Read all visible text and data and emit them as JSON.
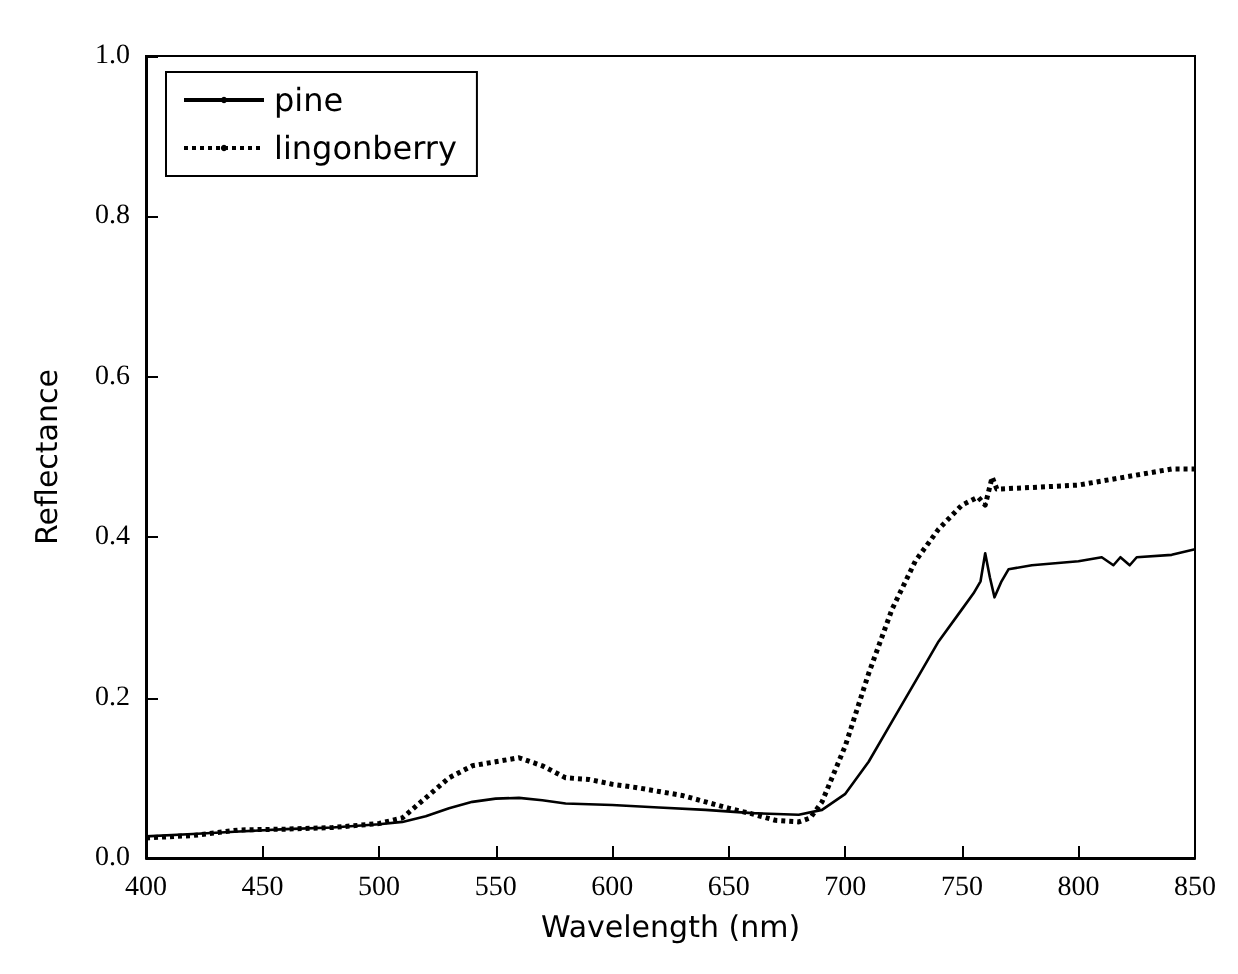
{
  "chart_data": {
    "type": "line",
    "xlabel": "Wavelength (nm)",
    "ylabel": "Reflectance",
    "xlim": [
      400,
      850
    ],
    "ylim": [
      0,
      1
    ],
    "xticks": [
      400,
      450,
      500,
      550,
      600,
      650,
      700,
      750,
      800,
      850
    ],
    "yticks": [
      {
        "value": 0,
        "label": "0.0"
      },
      {
        "value": 0.2,
        "label": "0.2"
      },
      {
        "value": 0.4,
        "label": "0.4"
      },
      {
        "value": 0.6,
        "label": "0.6"
      },
      {
        "value": 0.8,
        "label": "0.8"
      },
      {
        "value": 1,
        "label": "1.0"
      }
    ],
    "grid": false,
    "legend": "top left",
    "marker": "none",
    "series": [
      {
        "name": "pine",
        "color": "#000000",
        "line_style": "solid",
        "x": [
          400,
          420,
          440,
          460,
          480,
          500,
          510,
          520,
          530,
          540,
          550,
          560,
          570,
          580,
          600,
          620,
          640,
          660,
          680,
          690,
          700,
          710,
          720,
          730,
          740,
          750,
          755,
          758,
          760,
          762,
          764,
          767,
          770,
          780,
          800,
          810,
          815,
          818,
          822,
          825,
          840,
          850
        ],
        "values": [
          0.027,
          0.03,
          0.033,
          0.036,
          0.038,
          0.042,
          0.045,
          0.052,
          0.062,
          0.07,
          0.074,
          0.075,
          0.072,
          0.068,
          0.066,
          0.063,
          0.06,
          0.056,
          0.054,
          0.06,
          0.08,
          0.12,
          0.17,
          0.22,
          0.27,
          0.31,
          0.33,
          0.345,
          0.38,
          0.35,
          0.325,
          0.345,
          0.36,
          0.365,
          0.37,
          0.375,
          0.365,
          0.375,
          0.365,
          0.375,
          0.378,
          0.385
        ]
      },
      {
        "name": "lingonberry",
        "color": "#000000",
        "line_style": "dotted",
        "x": [
          400,
          420,
          440,
          460,
          480,
          500,
          510,
          520,
          530,
          540,
          550,
          560,
          570,
          580,
          590,
          600,
          610,
          620,
          630,
          640,
          650,
          660,
          670,
          680,
          685,
          690,
          700,
          710,
          720,
          730,
          740,
          750,
          757,
          760,
          763,
          765,
          780,
          800,
          820,
          840,
          850
        ],
        "values": [
          0.025,
          0.028,
          0.035,
          0.036,
          0.038,
          0.043,
          0.05,
          0.075,
          0.1,
          0.115,
          0.12,
          0.125,
          0.115,
          0.1,
          0.098,
          0.092,
          0.088,
          0.083,
          0.078,
          0.07,
          0.062,
          0.055,
          0.047,
          0.045,
          0.05,
          0.07,
          0.14,
          0.23,
          0.31,
          0.37,
          0.41,
          0.44,
          0.45,
          0.44,
          0.475,
          0.46,
          0.462,
          0.465,
          0.475,
          0.485,
          0.485
        ]
      }
    ]
  }
}
